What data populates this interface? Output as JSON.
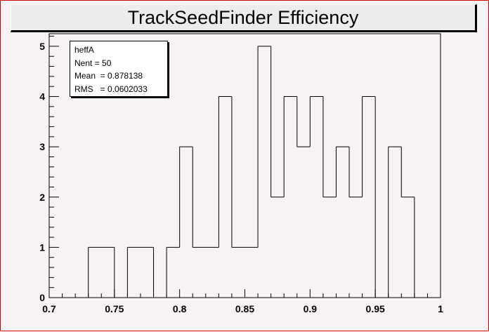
{
  "title": "TrackSeedFinder Efficiency",
  "stats": {
    "name": "heffA",
    "rows": [
      {
        "label": "Nent",
        "value": "= 50"
      },
      {
        "label": "Mean",
        "value": " = 0.878138"
      },
      {
        "label": "RMS",
        "value": "  = 0.0602033"
      }
    ]
  },
  "colors": {
    "frame": "#d40000",
    "canvas": "#f6f2f6",
    "line": "#000000"
  },
  "chart_data": {
    "type": "histogram",
    "title": "TrackSeedFinder Efficiency",
    "xlim": [
      0.7,
      1.0
    ],
    "ylim": [
      0,
      5.25
    ],
    "bin_width": 0.01,
    "bin_edges_start": 0.7,
    "counts": [
      0,
      0,
      0,
      1,
      1,
      0,
      1,
      1,
      0,
      1,
      3,
      1,
      1,
      4,
      1,
      1,
      5,
      2,
      4,
      3,
      4,
      2,
      3,
      2,
      4,
      0,
      3,
      2,
      0,
      0
    ],
    "x_ticks": [
      "0.7",
      "0.75",
      "0.8",
      "0.85",
      "0.9",
      "0.95",
      "1"
    ],
    "y_ticks": [
      "0",
      "1",
      "2",
      "3",
      "4",
      "5"
    ],
    "grid": false
  }
}
